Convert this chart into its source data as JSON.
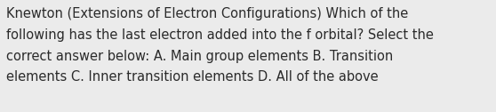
{
  "text_line1": "Knewton (Extensions of Electron Configurations) Which of the",
  "text_line2": "following has the last electron added into the f orbital? Select the",
  "text_line3": "correct answer below: A. Main group elements B. Transition",
  "text_line4": "elements C. Inner transition elements D. All of the above",
  "background_color": "#ebebeb",
  "text_color": "#2a2a2a",
  "font_size": 10.5,
  "fig_width": 5.58,
  "fig_height": 1.26,
  "dpi": 100
}
